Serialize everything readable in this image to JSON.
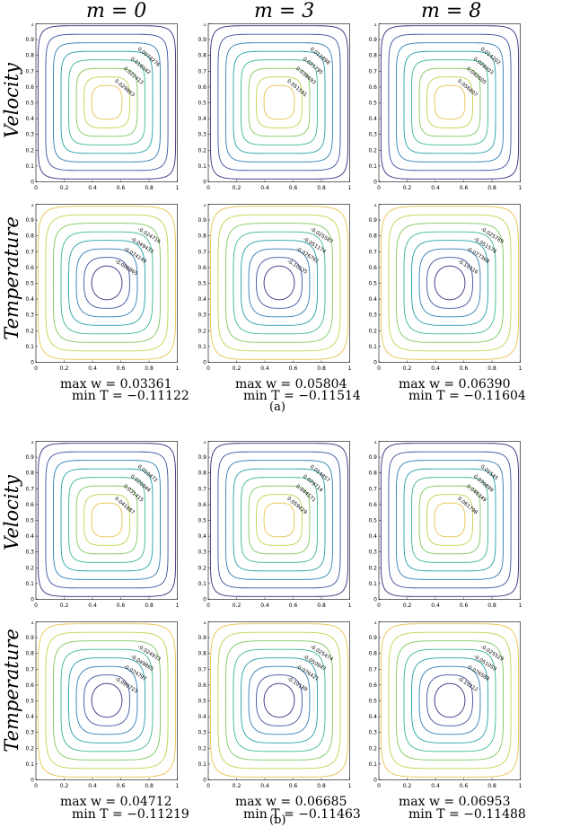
{
  "figure": {
    "column_headers": [
      "m = 0",
      "m = 3",
      "m = 8"
    ],
    "row_labels": [
      "Velocity",
      "Temperature"
    ],
    "panel_labels": [
      "(a)",
      "(b)"
    ]
  },
  "stats": [
    [
      [
        "max w = 0.03361",
        "min T = −0.11122"
      ],
      [
        "max w = 0.05804",
        "min T = −0.11514"
      ],
      [
        "max w = 0.06390",
        "min T = −0.11604"
      ]
    ],
    [
      [
        "max w = 0.04712",
        "min T = −0.11219"
      ],
      [
        "max w = 0.06685",
        "min T = −0.11463"
      ],
      [
        "max w = 0.06953",
        "min T = −0.11488"
      ]
    ]
  ],
  "chart_data": [
    {
      "type": "contour",
      "panel": "(a)",
      "row": "Velocity",
      "column": "m = 0",
      "x_ticks": [
        "0",
        "0.2",
        "0.4",
        "0.6",
        "0.8",
        "1"
      ],
      "y_ticks": [
        "0",
        "0.1",
        "0.2",
        "0.3",
        "0.4",
        "0.5",
        "0.6",
        "0.7",
        "0.8",
        "0.9",
        "1"
      ],
      "contour_labels": [
        "0.0074276",
        "0.016042",
        "0.022413",
        "0.029863"
      ]
    },
    {
      "type": "contour",
      "panel": "(a)",
      "row": "Velocity",
      "column": "m = 3",
      "x_ticks": [
        "0",
        "0.2",
        "0.4",
        "0.6",
        "0.8",
        "1"
      ],
      "y_ticks": [
        "0",
        "0.1",
        "0.2",
        "0.3",
        "0.4",
        "0.5",
        "0.6",
        "0.7",
        "0.8",
        "0.9",
        "1"
      ],
      "contour_labels": [
        "0.012898",
        "0.025795",
        "0.038693",
        "0.051591"
      ]
    },
    {
      "type": "contour",
      "panel": "(a)",
      "row": "Velocity",
      "column": "m = 8",
      "x_ticks": [
        "0",
        "0.2",
        "0.4",
        "0.6",
        "0.8",
        "1"
      ],
      "y_ticks": [
        "0",
        "0.1",
        "0.2",
        "0.3",
        "0.4",
        "0.5",
        "0.6",
        "0.7",
        "0.8",
        "0.9",
        "1"
      ],
      "contour_labels": [
        "0.014202",
        "0.028403",
        "0.042605",
        "0.056807"
      ]
    },
    {
      "type": "contour",
      "panel": "(a)",
      "row": "Temperature",
      "column": "m = 0",
      "x_ticks": [
        "0",
        "0.2",
        "0.4",
        "0.6",
        "0.8",
        "1"
      ],
      "y_ticks": [
        "0",
        "0.1",
        "0.2",
        "0.3",
        "0.4",
        "0.5",
        "0.6",
        "0.7",
        "0.8",
        "0.9",
        "1"
      ],
      "contour_labels": [
        "-0.024716",
        "-0.049433",
        "-0.074149",
        "-0.098865"
      ]
    },
    {
      "type": "contour",
      "panel": "(a)",
      "row": "Temperature",
      "column": "m = 3",
      "x_ticks": [
        "0",
        "0.2",
        "0.4",
        "0.6",
        "0.8",
        "1"
      ],
      "y_ticks": [
        "0",
        "0.1",
        "0.2",
        "0.3",
        "0.4",
        "0.5",
        "0.6",
        "0.7",
        "0.8",
        "0.9",
        "1"
      ],
      "contour_labels": [
        "-0.025587",
        "-0.051174",
        "-0.076761",
        "-0.10235"
      ]
    },
    {
      "type": "contour",
      "panel": "(a)",
      "row": "Temperature",
      "column": "m = 8",
      "x_ticks": [
        "0",
        "0.2",
        "0.4",
        "0.6",
        "0.8",
        "1"
      ],
      "y_ticks": [
        "0",
        "0.1",
        "0.2",
        "0.3",
        "0.4",
        "0.5",
        "0.6",
        "0.7",
        "0.8",
        "0.9",
        "1"
      ],
      "contour_labels": [
        "-0.025789",
        "-0.051578",
        "-0.077368",
        "-0.10316"
      ]
    },
    {
      "type": "contour",
      "panel": "(b)",
      "row": "Velocity",
      "column": "m = 0",
      "x_ticks": [
        "0",
        "0.2",
        "0.4",
        "0.6",
        "0.8",
        "1"
      ],
      "y_ticks": [
        "0",
        "0.1",
        "0.2",
        "0.3",
        "0.4",
        "0.5",
        "0.6",
        "0.7",
        "0.8",
        "0.9",
        "1"
      ],
      "contour_labels": [
        "0.010472",
        "0.020944",
        "0.031415",
        "0.041887"
      ]
    },
    {
      "type": "contour",
      "panel": "(b)",
      "row": "Velocity",
      "column": "m = 3",
      "x_ticks": [
        "0",
        "0.2",
        "0.4",
        "0.6",
        "0.8",
        "1"
      ],
      "y_ticks": [
        "0",
        "0.1",
        "0.2",
        "0.3",
        "0.4",
        "0.5",
        "0.6",
        "0.7",
        "0.8",
        "0.9",
        "1"
      ],
      "contour_labels": [
        "0.014857",
        "0.029714",
        "0.044571",
        "0.059429"
      ]
    },
    {
      "type": "contour",
      "panel": "(b)",
      "row": "Velocity",
      "column": "m = 8",
      "x_ticks": [
        "0",
        "0.2",
        "0.4",
        "0.6",
        "0.8",
        "1"
      ],
      "y_ticks": [
        "0",
        "0.1",
        "0.2",
        "0.3",
        "0.4",
        "0.5",
        "0.6",
        "0.7",
        "0.8",
        "0.9",
        "1"
      ],
      "contour_labels": [
        "0.01545",
        "0.030899",
        "0.046349",
        "0.061798"
      ]
    },
    {
      "type": "contour",
      "panel": "(b)",
      "row": "Temperature",
      "column": "m = 0",
      "x_ticks": [
        "0",
        "0.2",
        "0.4",
        "0.6",
        "0.8",
        "1"
      ],
      "y_ticks": [
        "0",
        "0.1",
        "0.2",
        "0.3",
        "0.4",
        "0.5",
        "0.6",
        "0.7",
        "0.8",
        "0.9",
        "1"
      ],
      "contour_labels": [
        "-0.024933",
        "-0.049865",
        "-0.074797",
        "-0.099723"
      ]
    },
    {
      "type": "contour",
      "panel": "(b)",
      "row": "Temperature",
      "column": "m = 3",
      "x_ticks": [
        "0",
        "0.2",
        "0.4",
        "0.6",
        "0.8",
        "1"
      ],
      "y_ticks": [
        "0",
        "0.1",
        "0.2",
        "0.3",
        "0.4",
        "0.5",
        "0.6",
        "0.7",
        "0.8",
        "0.9",
        "1"
      ],
      "contour_labels": [
        "-0.025474",
        "-0.050947",
        "-0.076421",
        "-0.10189"
      ]
    },
    {
      "type": "contour",
      "panel": "(b)",
      "row": "Temperature",
      "column": "m = 8",
      "x_ticks": [
        "0",
        "0.2",
        "0.4",
        "0.6",
        "0.8",
        "1"
      ],
      "y_ticks": [
        "0",
        "0.1",
        "0.2",
        "0.3",
        "0.4",
        "0.5",
        "0.6",
        "0.7",
        "0.8",
        "0.9",
        "1"
      ],
      "contour_labels": [
        "-0.025529",
        "-0.051059",
        "-0.076588",
        "-0.10212"
      ]
    }
  ]
}
